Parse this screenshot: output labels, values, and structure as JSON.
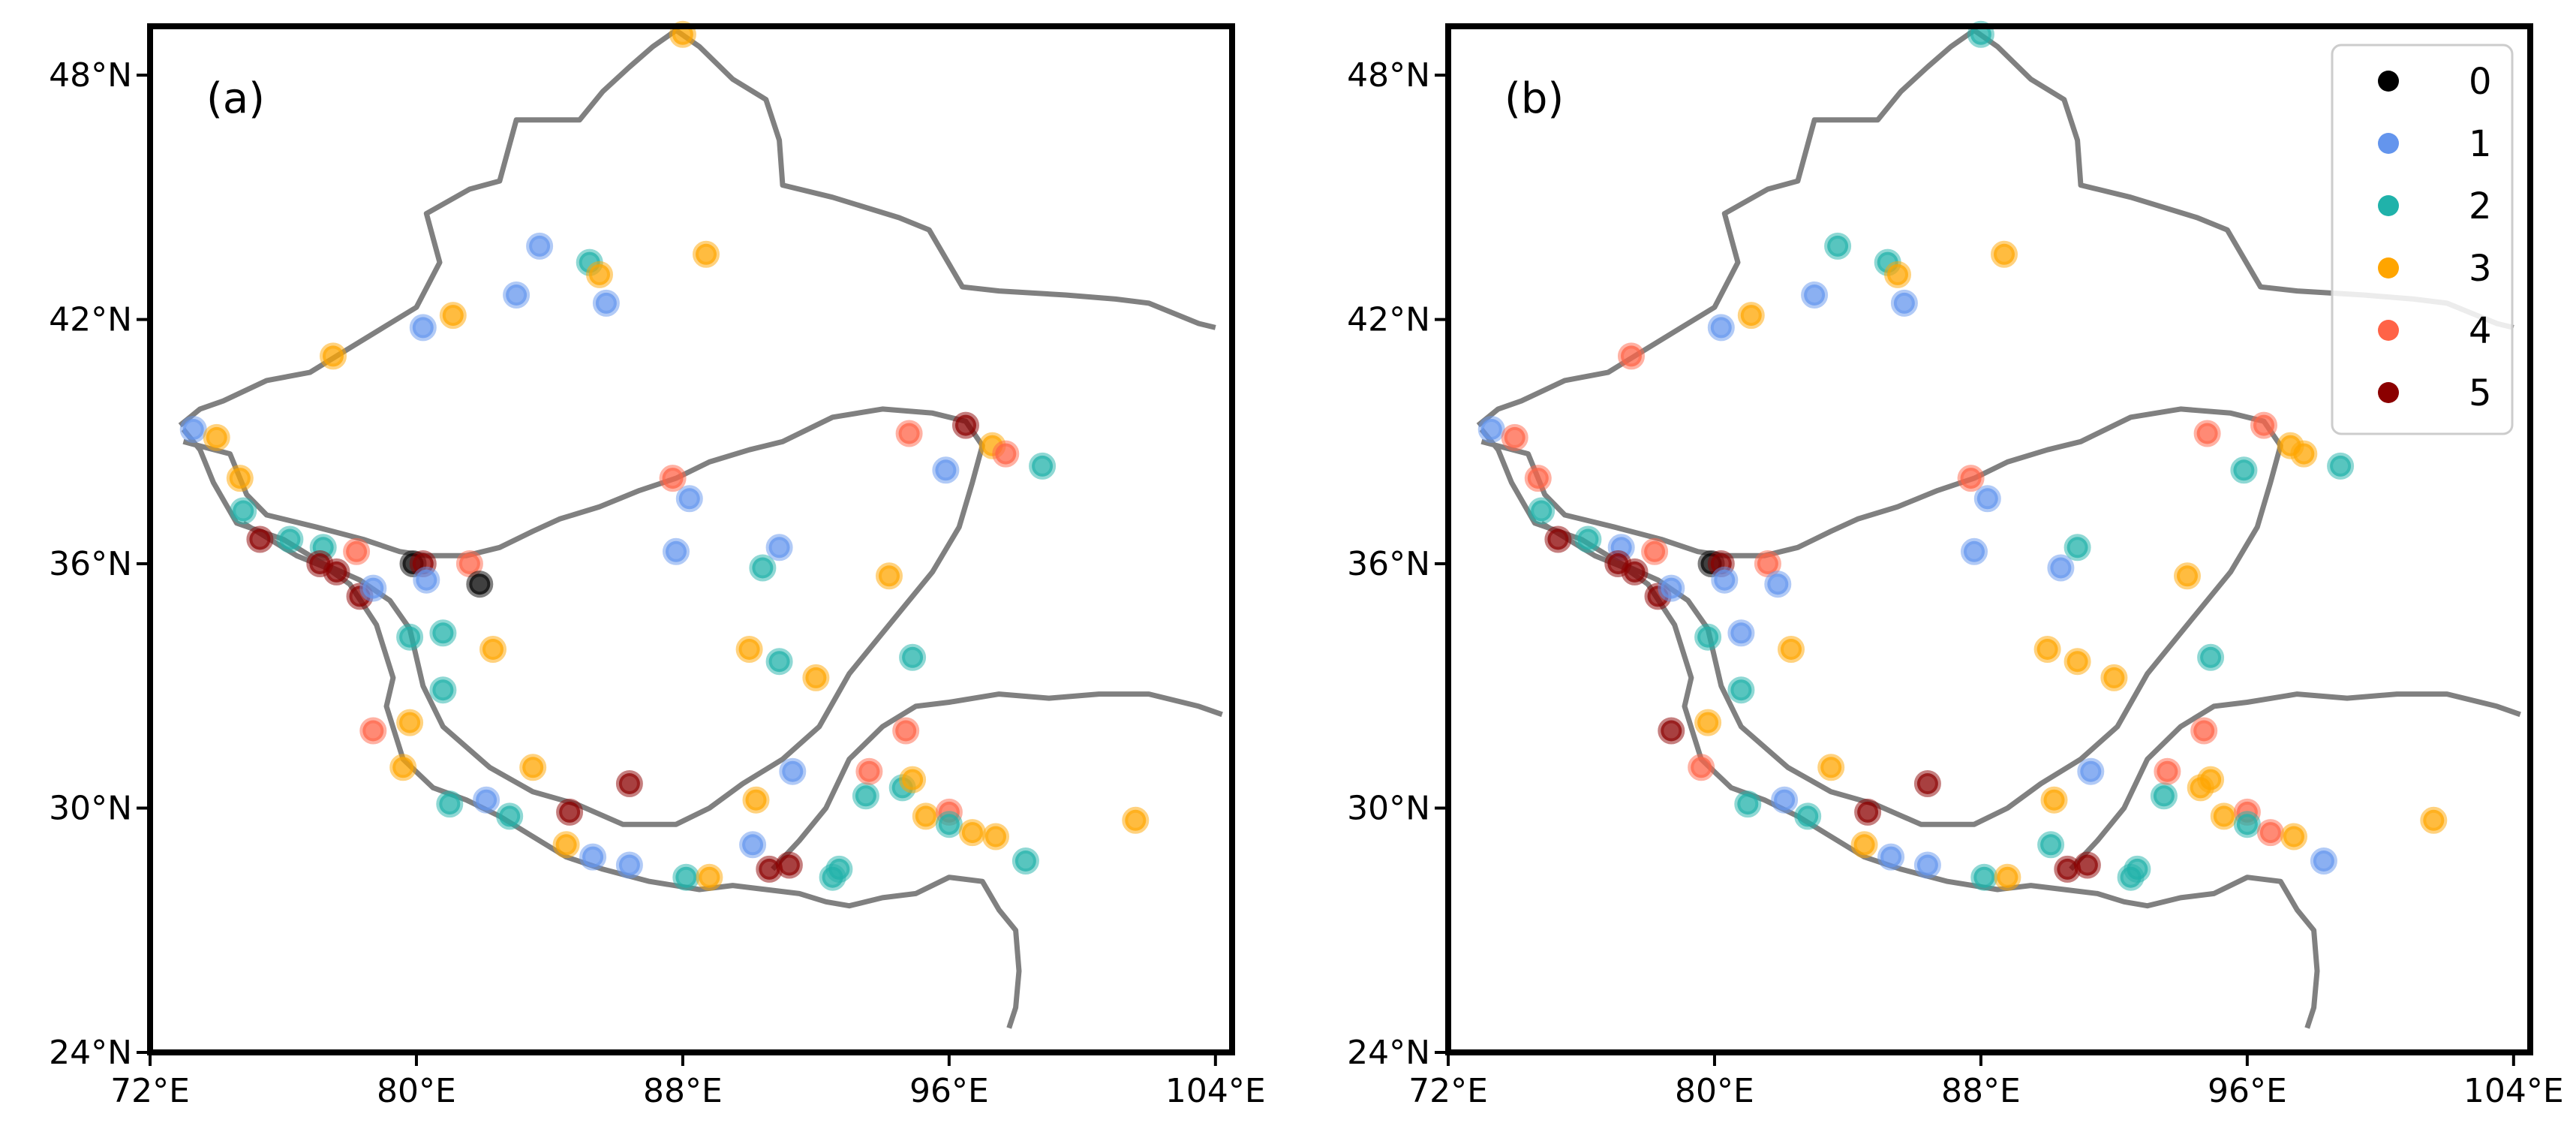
{
  "figure": {
    "panels": [
      {
        "id": "a",
        "label": "(a)"
      },
      {
        "id": "b",
        "label": "(b)"
      }
    ],
    "legend": {
      "placement": "top-right of panel (b)",
      "entries": [
        {
          "label": "0",
          "color": "#000000"
        },
        {
          "label": "1",
          "color": "#6495ED"
        },
        {
          "label": "2",
          "color": "#20B2AA"
        },
        {
          "label": "3",
          "color": "#FFA500"
        },
        {
          "label": "4",
          "color": "#FF6347"
        },
        {
          "label": "5",
          "color": "#8B0000"
        }
      ]
    },
    "xticks": [
      "72°E",
      "80°E",
      "88°E",
      "96°E",
      "104°E"
    ],
    "yticks": [
      "48°N",
      "42°N",
      "36°N",
      "30°N",
      "24°N"
    ],
    "boundary_color": "#808080"
  },
  "chart_data": [
    {
      "type": "scatter",
      "panel": "(a)",
      "xlim": [
        72,
        104.5
      ],
      "ylim": [
        24,
        49.2
      ],
      "x_unit": "°E",
      "y_unit": "°N",
      "points": [
        [
          73.3,
          39.3,
          1
        ],
        [
          74.0,
          39.1,
          3
        ],
        [
          74.7,
          38.1,
          3
        ],
        [
          74.8,
          37.3,
          2
        ],
        [
          75.3,
          36.6,
          5
        ],
        [
          76.2,
          36.6,
          2
        ],
        [
          77.2,
          36.4,
          2
        ],
        [
          78.2,
          36.3,
          4
        ],
        [
          77.1,
          36.0,
          5
        ],
        [
          77.6,
          35.8,
          5
        ],
        [
          78.3,
          35.2,
          5
        ],
        [
          78.7,
          35.4,
          1
        ],
        [
          79.9,
          36.0,
          0
        ],
        [
          80.2,
          36.0,
          5
        ],
        [
          80.3,
          35.6,
          1
        ],
        [
          81.6,
          36.0,
          4
        ],
        [
          81.9,
          35.5,
          0
        ],
        [
          79.8,
          34.2,
          2
        ],
        [
          80.8,
          34.3,
          2
        ],
        [
          82.3,
          33.9,
          3
        ],
        [
          80.8,
          32.9,
          2
        ],
        [
          79.8,
          32.1,
          3
        ],
        [
          78.7,
          31.9,
          4
        ],
        [
          79.6,
          31.0,
          3
        ],
        [
          81.0,
          30.1,
          2
        ],
        [
          82.1,
          30.2,
          1
        ],
        [
          82.8,
          29.8,
          2
        ],
        [
          84.6,
          29.9,
          5
        ],
        [
          84.5,
          29.1,
          3
        ],
        [
          85.3,
          28.8,
          1
        ],
        [
          86.4,
          28.6,
          1
        ],
        [
          88.1,
          28.3,
          2
        ],
        [
          88.8,
          28.3,
          3
        ],
        [
          83.5,
          31.0,
          3
        ],
        [
          86.4,
          30.6,
          5
        ],
        [
          90.2,
          30.2,
          3
        ],
        [
          90.1,
          29.1,
          1
        ],
        [
          90.6,
          28.5,
          5
        ],
        [
          91.2,
          28.6,
          5
        ],
        [
          92.5,
          28.3,
          2
        ],
        [
          92.7,
          28.5,
          2
        ],
        [
          90.9,
          33.6,
          2
        ],
        [
          90.4,
          35.9,
          2
        ],
        [
          90.9,
          36.4,
          1
        ],
        [
          91.3,
          30.9,
          1
        ],
        [
          92.0,
          33.2,
          3
        ],
        [
          90.0,
          33.9,
          3
        ],
        [
          93.5,
          30.3,
          2
        ],
        [
          93.6,
          30.9,
          4
        ],
        [
          94.6,
          30.5,
          2
        ],
        [
          94.9,
          30.7,
          3
        ],
        [
          94.7,
          31.9,
          4
        ],
        [
          94.9,
          33.7,
          2
        ],
        [
          94.2,
          35.7,
          3
        ],
        [
          95.3,
          29.8,
          3
        ],
        [
          96.0,
          29.9,
          4
        ],
        [
          96.0,
          29.6,
          2
        ],
        [
          96.7,
          29.4,
          3
        ],
        [
          97.4,
          29.3,
          3
        ],
        [
          98.3,
          28.7,
          2
        ],
        [
          101.6,
          29.7,
          3
        ],
        [
          88.2,
          37.6,
          1
        ],
        [
          87.8,
          36.3,
          1
        ],
        [
          87.7,
          38.1,
          4
        ],
        [
          94.8,
          39.2,
          4
        ],
        [
          95.9,
          38.3,
          1
        ],
        [
          96.5,
          39.4,
          5
        ],
        [
          97.3,
          38.9,
          3
        ],
        [
          97.7,
          38.7,
          4
        ],
        [
          98.8,
          38.4,
          2
        ],
        [
          88.7,
          43.6,
          3
        ],
        [
          85.2,
          43.4,
          2
        ],
        [
          85.5,
          43.1,
          3
        ],
        [
          83.7,
          43.8,
          1
        ],
        [
          83.0,
          42.6,
          1
        ],
        [
          85.7,
          42.4,
          1
        ],
        [
          81.1,
          42.1,
          3
        ],
        [
          80.2,
          41.8,
          1
        ],
        [
          77.5,
          41.1,
          3
        ],
        [
          88.0,
          49.0,
          3
        ]
      ]
    },
    {
      "type": "scatter",
      "panel": "(b)",
      "xlim": [
        72,
        104.5
      ],
      "ylim": [
        24,
        49.2
      ],
      "x_unit": "°E",
      "y_unit": "°N",
      "points": [
        [
          73.3,
          39.3,
          1
        ],
        [
          74.0,
          39.1,
          4
        ],
        [
          74.7,
          38.1,
          4
        ],
        [
          74.8,
          37.3,
          2
        ],
        [
          75.3,
          36.6,
          5
        ],
        [
          76.2,
          36.6,
          2
        ],
        [
          77.2,
          36.4,
          1
        ],
        [
          78.2,
          36.3,
          4
        ],
        [
          77.1,
          36.0,
          5
        ],
        [
          77.6,
          35.8,
          5
        ],
        [
          78.3,
          35.2,
          5
        ],
        [
          78.7,
          35.4,
          1
        ],
        [
          79.9,
          36.0,
          0
        ],
        [
          80.2,
          36.0,
          5
        ],
        [
          80.3,
          35.6,
          1
        ],
        [
          81.6,
          36.0,
          4
        ],
        [
          81.9,
          35.5,
          1
        ],
        [
          79.8,
          34.2,
          2
        ],
        [
          80.8,
          34.3,
          1
        ],
        [
          82.3,
          33.9,
          3
        ],
        [
          80.8,
          32.9,
          2
        ],
        [
          79.8,
          32.1,
          3
        ],
        [
          78.7,
          31.9,
          5
        ],
        [
          79.6,
          31.0,
          4
        ],
        [
          81.0,
          30.1,
          2
        ],
        [
          82.1,
          30.2,
          1
        ],
        [
          82.8,
          29.8,
          2
        ],
        [
          84.6,
          29.9,
          5
        ],
        [
          84.5,
          29.1,
          3
        ],
        [
          85.3,
          28.8,
          1
        ],
        [
          86.4,
          28.6,
          1
        ],
        [
          88.1,
          28.3,
          2
        ],
        [
          88.8,
          28.3,
          3
        ],
        [
          83.5,
          31.0,
          3
        ],
        [
          86.4,
          30.6,
          5
        ],
        [
          90.2,
          30.2,
          3
        ],
        [
          90.1,
          29.1,
          2
        ],
        [
          90.6,
          28.5,
          5
        ],
        [
          91.2,
          28.6,
          5
        ],
        [
          92.5,
          28.3,
          2
        ],
        [
          92.7,
          28.5,
          2
        ],
        [
          90.9,
          33.6,
          3
        ],
        [
          90.4,
          35.9,
          1
        ],
        [
          90.9,
          36.4,
          2
        ],
        [
          91.3,
          30.9,
          1
        ],
        [
          92.0,
          33.2,
          3
        ],
        [
          90.0,
          33.9,
          3
        ],
        [
          93.5,
          30.3,
          2
        ],
        [
          93.6,
          30.9,
          4
        ],
        [
          94.6,
          30.5,
          3
        ],
        [
          94.9,
          30.7,
          3
        ],
        [
          94.7,
          31.9,
          4
        ],
        [
          94.9,
          33.7,
          2
        ],
        [
          94.2,
          35.7,
          3
        ],
        [
          95.3,
          29.8,
          3
        ],
        [
          96.0,
          29.9,
          4
        ],
        [
          96.0,
          29.6,
          2
        ],
        [
          96.7,
          29.4,
          4
        ],
        [
          97.4,
          29.3,
          3
        ],
        [
          98.3,
          28.7,
          1
        ],
        [
          101.6,
          29.7,
          3
        ],
        [
          88.2,
          37.6,
          1
        ],
        [
          87.8,
          36.3,
          1
        ],
        [
          87.7,
          38.1,
          4
        ],
        [
          94.8,
          39.2,
          4
        ],
        [
          95.9,
          38.3,
          2
        ],
        [
          96.5,
          39.4,
          4
        ],
        [
          97.3,
          38.9,
          3
        ],
        [
          97.7,
          38.7,
          3
        ],
        [
          98.8,
          38.4,
          2
        ],
        [
          88.7,
          43.6,
          3
        ],
        [
          85.2,
          43.4,
          2
        ],
        [
          85.5,
          43.1,
          3
        ],
        [
          83.7,
          43.8,
          2
        ],
        [
          83.0,
          42.6,
          1
        ],
        [
          85.7,
          42.4,
          1
        ],
        [
          81.1,
          42.1,
          3
        ],
        [
          80.2,
          41.8,
          1
        ],
        [
          77.5,
          41.1,
          4
        ],
        [
          88.0,
          49.0,
          2
        ]
      ]
    }
  ]
}
